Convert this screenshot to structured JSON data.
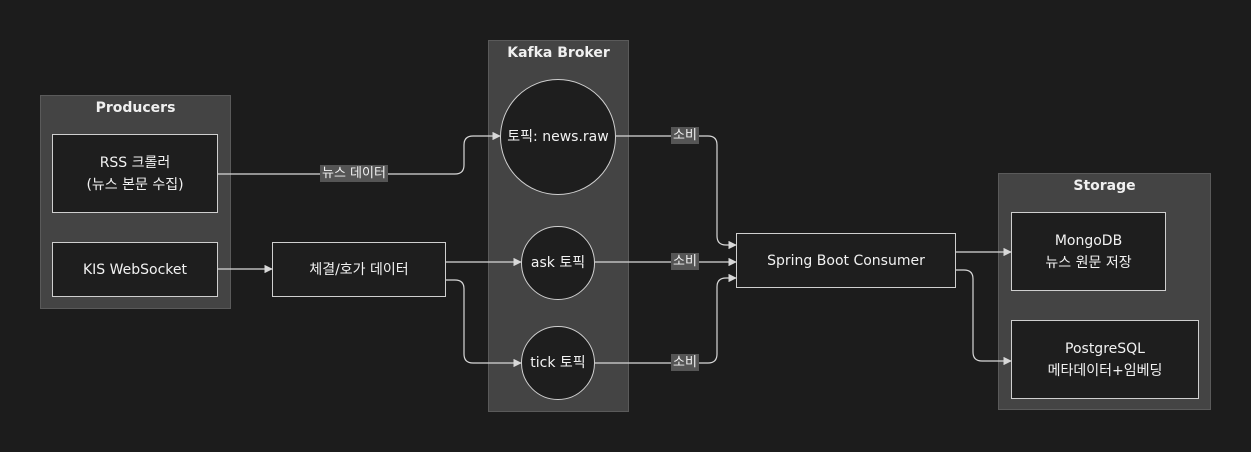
{
  "clusters": {
    "producers": "Producers",
    "kafka": "Kafka Broker",
    "storage": "Storage"
  },
  "nodes": {
    "rss": "RSS 크롤러\n(뉴스 본문 수집)",
    "kis": "KIS WebSocket",
    "trade": "체결/호가 데이터",
    "news_topic": "토픽: news.raw",
    "ask_topic": "ask 토픽",
    "tick_topic": "tick 토픽",
    "consumer": "Spring Boot Consumer",
    "mongo": "MongoDB\n뉴스 원문 저장",
    "postgres": "PostgreSQL\n메타데이터+임베딩"
  },
  "edges": {
    "news_data": "뉴스 데이터",
    "consume_news": "소비",
    "consume_ask": "소비",
    "consume_tick": "소비"
  },
  "colors": {
    "background": "#1c1c1c",
    "cluster": "#444444",
    "node_fill": "#1e1e1e",
    "stroke": "#cfcfcf"
  }
}
